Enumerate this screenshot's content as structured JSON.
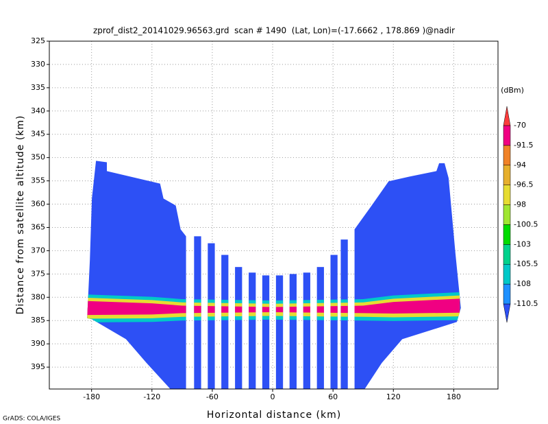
{
  "chart_data": {
    "type": "shaded",
    "title": "zprof_dist2_20141029.96563.grd  scan # 1490  (Lat, Lon)=(-17.6662 , 178.869 )@nadir",
    "x_label": "Horizontal distance (km)",
    "y_label": "Distance from satellite altitude (km)",
    "footer": "GrADS: COLA/IGES",
    "xlim": [
      -222,
      224
    ],
    "xticks": [
      -180,
      -120,
      -60,
      0,
      60,
      120,
      180
    ],
    "ylim": [
      325,
      399.7
    ],
    "yticks": [
      325,
      330,
      335,
      340,
      345,
      350,
      355,
      360,
      365,
      370,
      375,
      380,
      385,
      390,
      395
    ],
    "grid": true,
    "regions": [
      {
        "color": "#2d50f5",
        "x": [
          -175.6,
          -164.8,
          -164.8,
          -111.9,
          -108.5,
          -96.3,
          -91.5,
          -86.1,
          -86.1,
          -101.7,
          -125.4,
          -145.8,
          -179.7,
          -184.4,
          -181.7,
          -179.7
        ],
        "y": [
          350.7,
          351.0,
          352.9,
          355.6,
          358.8,
          360.3,
          365.4,
          366.9,
          399.7,
          399.7,
          394.1,
          389.0,
          384.7,
          384.5,
          372.0,
          358.8
        ]
      },
      {
        "color": "#2d50f5",
        "x": [
          165.5,
          170.9,
          174.9,
          181.7,
          187.1,
          183.1,
          128.8,
          108.5,
          91.5,
          81.4,
          81.4,
          98.4,
          115.3,
          135.7,
          162.8
        ],
        "y": [
          351.2,
          351.2,
          354.4,
          370.6,
          382.3,
          385.3,
          389.0,
          394.1,
          399.7,
          399.7,
          365.4,
          360.3,
          355.1,
          354.1,
          352.9
        ]
      },
      {
        "color": "#00c8c8",
        "x": [
          -186,
          -120,
          -90,
          0,
          90,
          120,
          186,
          186,
          120,
          90,
          0,
          -90,
          -120,
          -186
        ],
        "y": [
          379.4,
          379.9,
          380.4,
          380.7,
          380.4,
          379.6,
          378.9,
          384.9,
          385.1,
          385.0,
          384.8,
          385.0,
          385.3,
          385.4
        ]
      },
      {
        "color": "#e6dc32",
        "x": [
          -186,
          -120,
          -90,
          0,
          90,
          120,
          186,
          186,
          120,
          90,
          0,
          -90,
          -120,
          -186
        ],
        "y": [
          380.1,
          380.6,
          381.1,
          381.4,
          381.1,
          380.3,
          379.6,
          384.1,
          384.3,
          384.2,
          384.0,
          384.2,
          384.5,
          384.6
        ]
      },
      {
        "color": "#f00082",
        "x": [
          -186,
          -120,
          -90,
          0,
          90,
          120,
          186,
          186,
          120,
          90,
          0,
          -90,
          -120,
          -186
        ],
        "y": [
          380.8,
          381.3,
          381.8,
          382.1,
          381.8,
          381.0,
          380.3,
          383.3,
          383.5,
          383.4,
          383.2,
          383.4,
          383.7,
          383.8
        ]
      }
    ],
    "columns": {
      "color": "#2d50f5",
      "width": 7,
      "x": [
        -74.6,
        -61,
        -47.5,
        -33.9,
        -20.3,
        -6.8,
        6.8,
        20.3,
        33.9,
        47.5,
        61,
        71.2
      ],
      "top": [
        366.9,
        368.4,
        370.9,
        373.5,
        374.7,
        375.3,
        375.3,
        375.0,
        374.7,
        373.5,
        370.9,
        367.6
      ]
    },
    "colorbar": {
      "label": "(dBm)",
      "levels": [
        -110.5,
        -108,
        -105.5,
        -103,
        -100.5,
        -98,
        -96.5,
        -94,
        -91.5,
        -70
      ],
      "colors": [
        "#2d50f5",
        "#1e90ff",
        "#00c8c8",
        "#00d28c",
        "#00dc00",
        "#a0e632",
        "#e6dc32",
        "#e6af2d",
        "#f08228",
        "#f00082",
        "#fa3c3c"
      ]
    }
  }
}
